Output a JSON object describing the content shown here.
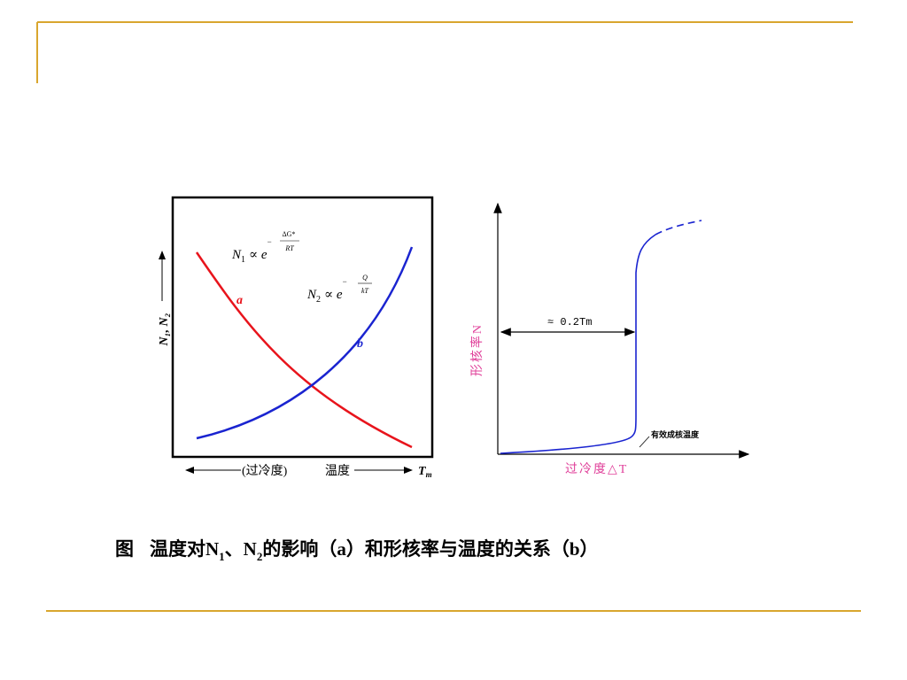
{
  "left": {
    "formula_n1": {
      "base": "N",
      "sub": "1",
      "op": "∝ e",
      "sign": "−",
      "num": "ΔG*",
      "den": "RT"
    },
    "formula_n2": {
      "base": "N",
      "sub": "2",
      "op": "∝ e",
      "sign": "−",
      "num": "Q",
      "den": "kT"
    },
    "curve_a": "a",
    "curve_b": "b",
    "y_label": "N₁, N₂",
    "x_label_left": "(过冷度)",
    "x_label_mid": "温度",
    "x_label_end": {
      "base": "T",
      "sub": "m"
    }
  },
  "right": {
    "interval": "≈ 0.2Tm",
    "y_label": "形核率N",
    "annotation": "有效成核温度",
    "x_label": "过冷度△T"
  },
  "caption": {
    "prefix": "图",
    "text1": "温度对N",
    "sub1": "1",
    "text2": "、N",
    "sub2": "2",
    "text3": "的影响（a）和形核率与温度的关系（b）"
  }
}
